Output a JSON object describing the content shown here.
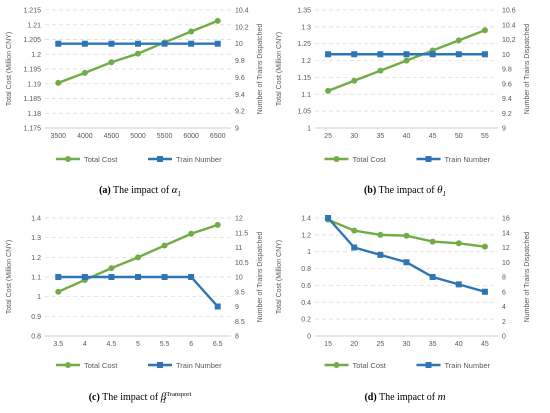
{
  "colors": {
    "total_cost": "#70AD47",
    "train_number": "#2E75B6",
    "grid": "#D9D9D9",
    "text": "#595959"
  },
  "chart_data": [
    {
      "id": "a",
      "type": "line",
      "caption": {
        "label": "(a)",
        "text": "The impact of",
        "symbol": "α",
        "sub": "1",
        "sup": ""
      },
      "x": [
        3500,
        4000,
        4500,
        5000,
        5500,
        6000,
        6500
      ],
      "xticks": [
        "3500",
        "4000",
        "4500",
        "5000",
        "5500",
        "6000",
        "6500"
      ],
      "series": [
        {
          "name": "Total Cost",
          "axis": "left",
          "values": [
            1.1903,
            1.1937,
            1.1973,
            1.2002,
            1.204,
            1.2077,
            1.2113
          ]
        },
        {
          "name": "Train Number",
          "axis": "right",
          "values": [
            10,
            10,
            10,
            10,
            10,
            10,
            10
          ]
        }
      ],
      "ylabel": "Total Cost (Million CNY)",
      "y2label": "Number of Trains Dispatched",
      "ylim": [
        1.175,
        1.215
      ],
      "yticks": [
        "1.175",
        "1.18",
        "1.185",
        "1.19",
        "1.195",
        "1.2",
        "1.205",
        "1.21",
        "1.215"
      ],
      "y2lim": [
        9,
        10.4
      ],
      "y2ticks": [
        "9",
        "9.2",
        "9.4",
        "9.6",
        "9.8",
        "10",
        "10.2",
        "10.4"
      ],
      "grid": true,
      "legend": "bottom"
    },
    {
      "id": "b",
      "type": "line",
      "caption": {
        "label": "(b)",
        "text": "The impact of",
        "symbol": "θ",
        "sub": "1",
        "sup": ""
      },
      "x": [
        25,
        30,
        35,
        40,
        45,
        50,
        55
      ],
      "xticks": [
        "25",
        "30",
        "35",
        "40",
        "45",
        "50",
        "55"
      ],
      "series": [
        {
          "name": "Total Cost",
          "axis": "left",
          "values": [
            1.11,
            1.14,
            1.17,
            1.2,
            1.23,
            1.26,
            1.29
          ]
        },
        {
          "name": "Train Number",
          "axis": "right",
          "values": [
            10,
            10,
            10,
            10,
            10,
            10,
            10
          ]
        }
      ],
      "ylabel": "Total Cost (Million CNY)",
      "y2label": "Number of Trains Dispatched",
      "ylim": [
        1,
        1.35
      ],
      "yticks": [
        "1",
        "1.05",
        "1.1",
        "1.15",
        "1.2",
        "1.25",
        "1.3",
        "1.35"
      ],
      "y2lim": [
        9,
        10.6
      ],
      "y2ticks": [
        "9",
        "9.2",
        "9.4",
        "9.6",
        "9.8",
        "10",
        "10.2",
        "10.4",
        "10.6"
      ],
      "grid": true,
      "legend": "bottom"
    },
    {
      "id": "c",
      "type": "line",
      "caption": {
        "label": "(c)",
        "text": "The impact of",
        "symbol": "β",
        "sub": "1",
        "sup": "Transport"
      },
      "x": [
        3.5,
        4,
        4.5,
        5,
        5.5,
        6,
        6.5
      ],
      "xticks": [
        "3.5",
        "4",
        "4.5",
        "5",
        "5.5",
        "6",
        "6.5"
      ],
      "series": [
        {
          "name": "Total Cost",
          "axis": "left",
          "values": [
            1.025,
            1.085,
            1.145,
            1.2,
            1.26,
            1.32,
            1.365
          ]
        },
        {
          "name": "Train Number",
          "axis": "right",
          "values": [
            10,
            10,
            10,
            10,
            10,
            10,
            9
          ]
        }
      ],
      "ylabel": "Total Cost (Million CNY)",
      "y2label": "Number of Trains Dispatched",
      "ylim": [
        0.8,
        1.4
      ],
      "yticks": [
        "0.8",
        "0.9",
        "1",
        "1.1",
        "1.2",
        "1.3",
        "1.4"
      ],
      "y2lim": [
        8,
        12
      ],
      "y2ticks": [
        "8",
        "8.5",
        "9",
        "9.5",
        "10",
        "10.5",
        "11",
        "11.5",
        "12"
      ],
      "grid": true,
      "legend": "bottom"
    },
    {
      "id": "d",
      "type": "line",
      "caption": {
        "label": "(d)",
        "text": "The impact of",
        "symbol": "m",
        "sub": "",
        "sup": ""
      },
      "x": [
        15,
        20,
        25,
        30,
        35,
        40,
        45
      ],
      "xticks": [
        "15",
        "20",
        "25",
        "30",
        "35",
        "40",
        "45"
      ],
      "series": [
        {
          "name": "Total Cost",
          "axis": "left",
          "values": [
            1.38,
            1.25,
            1.2,
            1.19,
            1.12,
            1.1,
            1.06
          ]
        },
        {
          "name": "Train Number",
          "axis": "right",
          "values": [
            16,
            12,
            11,
            10,
            8,
            7,
            6
          ]
        }
      ],
      "ylabel": "Total Cost (Million CNY)",
      "y2label": "Number of Trains Dispatched",
      "ylim": [
        0,
        1.4
      ],
      "yticks": [
        "0",
        "0.2",
        "0.4",
        "0.6",
        "0.8",
        "1",
        "1.2",
        "1.4"
      ],
      "y2lim": [
        0,
        16
      ],
      "y2ticks": [
        "0",
        "2",
        "4",
        "6",
        "8",
        "10",
        "12",
        "14",
        "16"
      ],
      "grid": true,
      "legend": "bottom"
    }
  ]
}
